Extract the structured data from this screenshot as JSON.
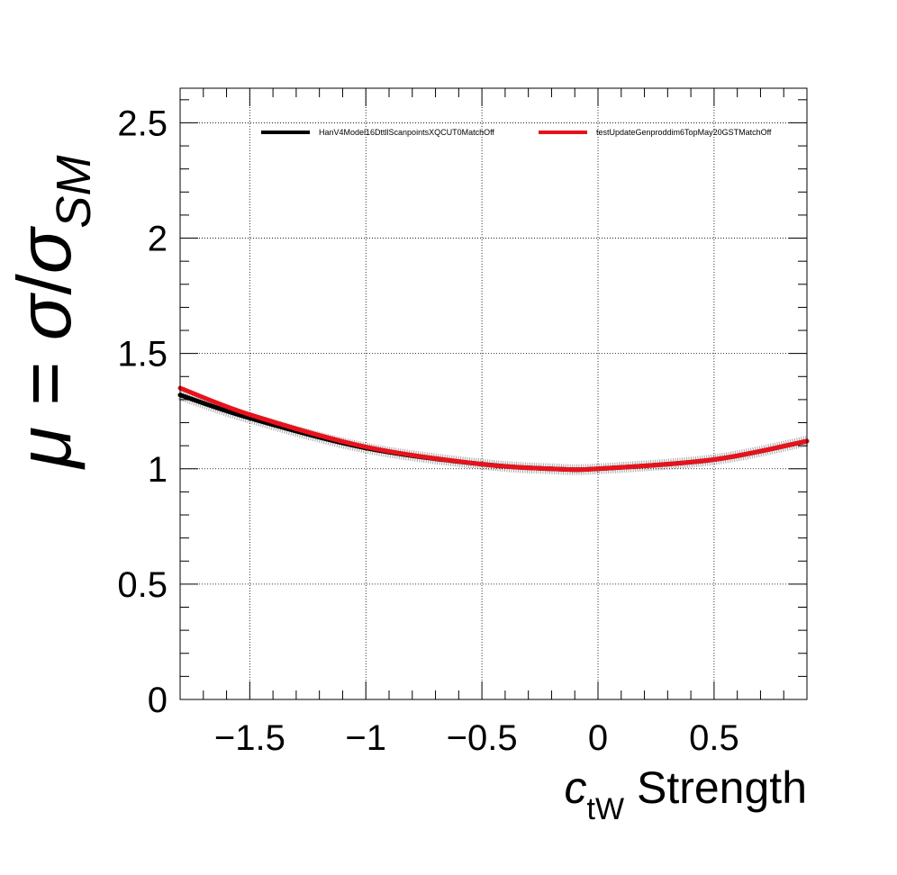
{
  "chart_data": {
    "type": "line",
    "xlim": [
      -1.8,
      0.9
    ],
    "ylim": [
      0,
      2.65
    ],
    "xticks": [
      -1.5,
      -1,
      -0.5,
      0,
      0.5
    ],
    "xtick_labels": [
      "−1.5",
      "−1",
      "−0.5",
      "0",
      "0.5"
    ],
    "yticks": [
      0,
      0.5,
      1,
      1.5,
      2,
      2.5
    ],
    "ytick_labels": [
      "0",
      "0.5",
      "1",
      "1.5",
      "2",
      "2.5"
    ],
    "grid": true,
    "legend_position": "top",
    "xlabel": {
      "symbol": "c",
      "subscript": "tW",
      "rest": " Strength"
    },
    "ylabel": {
      "mu": "μ",
      "eq": " = ",
      "sigma": "σ",
      "slash": "/",
      "sigma2": "σ",
      "subscript": "SM"
    },
    "series": [
      {
        "name": "HanV4Model16DttllScanpointsXQCUT0MatchOff",
        "color": "#000000",
        "x": [
          -1.8,
          -1.5,
          -1.0,
          -0.5,
          -0.2,
          0.0,
          0.5,
          0.9
        ],
        "y": [
          1.32,
          1.22,
          1.09,
          1.02,
          1.0,
          1.0,
          1.04,
          1.12
        ]
      },
      {
        "name": "testUpdateGenproddim6TopMay20GSTMatchOff",
        "color": "#e8121b",
        "x": [
          -1.8,
          -1.5,
          -1.0,
          -0.5,
          -0.2,
          0.0,
          0.5,
          0.9
        ],
        "y": [
          1.35,
          1.235,
          1.095,
          1.02,
          1.0,
          1.0,
          1.04,
          1.12
        ]
      }
    ]
  }
}
